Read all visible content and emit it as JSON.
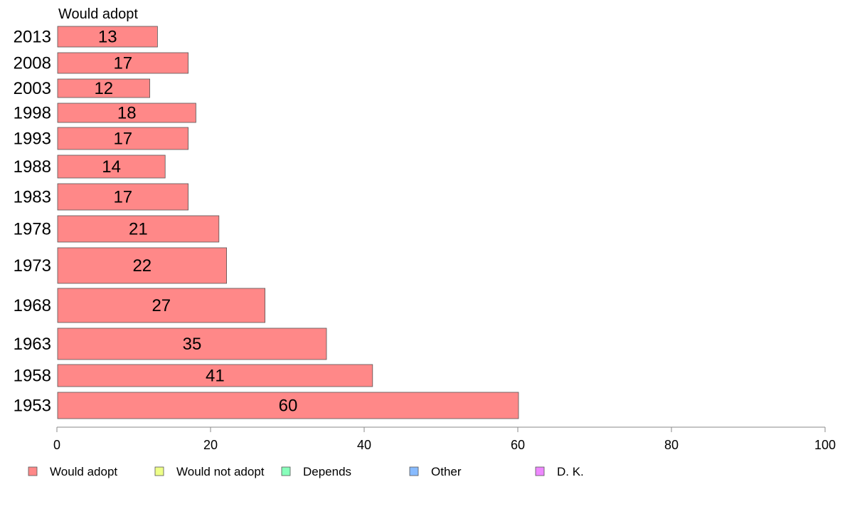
{
  "chart_data": {
    "type": "bar",
    "orientation": "horizontal",
    "header": "Would adopt",
    "categories": [
      "2013",
      "2008",
      "2003",
      "1998",
      "1993",
      "1988",
      "1983",
      "1978",
      "1973",
      "1968",
      "1963",
      "1958",
      "1953"
    ],
    "series": [
      {
        "name": "Would adopt",
        "values": [
          13,
          17,
          12,
          18,
          17,
          14,
          17,
          21,
          22,
          27,
          35,
          41,
          60
        ],
        "color": "#ff8888"
      }
    ],
    "xlim": [
      0,
      100
    ],
    "xticks": [
      0,
      20,
      40,
      60,
      80,
      100
    ],
    "grid": false,
    "legend": {
      "position": "bottom",
      "entries": [
        {
          "label": "Would adopt",
          "color": "#ff8888"
        },
        {
          "label": "Would not adopt",
          "color": "#eeff88"
        },
        {
          "label": "Depends",
          "color": "#88ffbb"
        },
        {
          "label": "Other",
          "color": "#88bbff"
        },
        {
          "label": "D. K.",
          "color": "#ee88ff"
        }
      ]
    }
  }
}
